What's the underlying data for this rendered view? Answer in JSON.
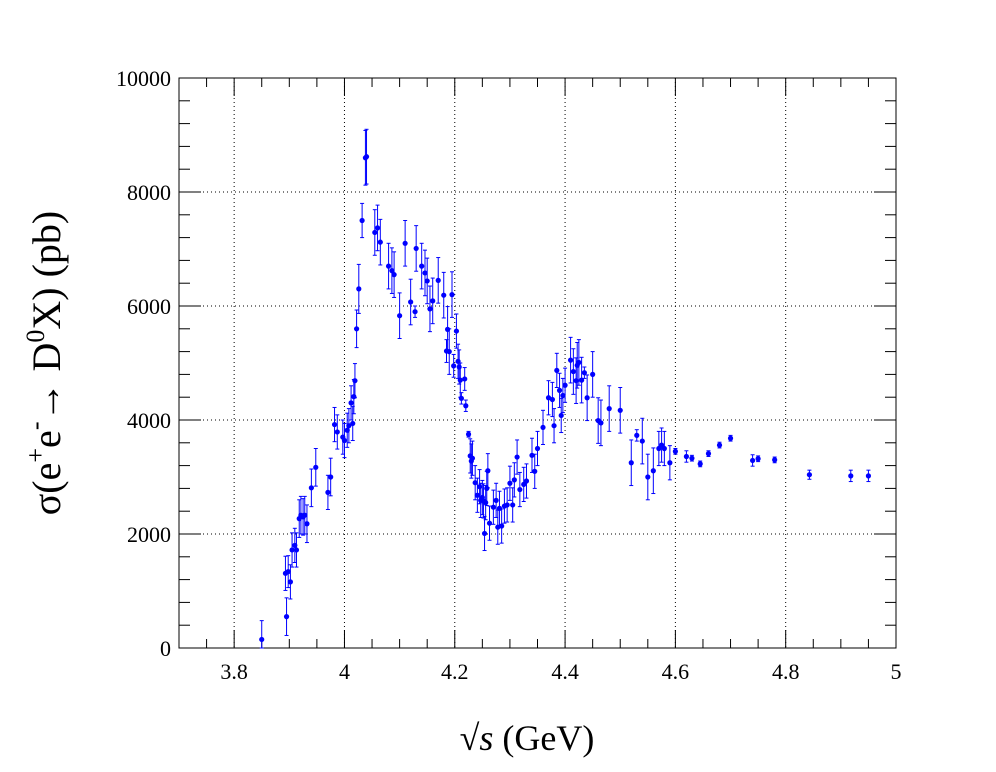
{
  "chart_data": {
    "type": "scatter",
    "xlabel_prefix": "√",
    "xlabel_var": "s",
    "xlabel_unit": " (GeV)",
    "ylabel_parts": [
      "σ(e",
      "+",
      "e",
      "-",
      "→ D",
      "0",
      "X) (pb)"
    ],
    "xlim": [
      3.7,
      5.0
    ],
    "ylim": [
      0,
      10000
    ],
    "xticks": [
      3.8,
      4.0,
      4.2,
      4.4,
      4.6,
      4.8,
      5.0
    ],
    "xtick_labels": [
      "3.8",
      "4",
      "4.2",
      "4.4",
      "4.6",
      "4.8",
      "5"
    ],
    "yticks": [
      0,
      2000,
      4000,
      6000,
      8000,
      10000
    ],
    "ytick_labels": [
      "0",
      "2000",
      "4000",
      "6000",
      "8000",
      "10000"
    ],
    "grid": true,
    "marker_color": "#0000ff",
    "points": [
      [
        3.85,
        150,
        330
      ],
      [
        3.893,
        1310,
        300
      ],
      [
        3.895,
        550,
        330
      ],
      [
        3.898,
        1340,
        280
      ],
      [
        3.902,
        1160,
        300
      ],
      [
        3.905,
        1720,
        300
      ],
      [
        3.91,
        1800,
        300
      ],
      [
        3.913,
        1720,
        300
      ],
      [
        3.918,
        2270,
        330
      ],
      [
        3.921,
        2330,
        330
      ],
      [
        3.925,
        2300,
        320
      ],
      [
        3.928,
        2330,
        330
      ],
      [
        3.932,
        2180,
        330
      ],
      [
        3.94,
        2810,
        330
      ],
      [
        3.948,
        3170,
        330
      ],
      [
        3.97,
        2730,
        300
      ],
      [
        3.975,
        3000,
        330
      ],
      [
        3.982,
        3920,
        300
      ],
      [
        3.987,
        3790,
        300
      ],
      [
        3.997,
        3700,
        300
      ],
      [
        4.0,
        3640,
        300
      ],
      [
        4.005,
        3820,
        300
      ],
      [
        4.008,
        3900,
        300
      ],
      [
        4.012,
        4300,
        300
      ],
      [
        4.015,
        3940,
        300
      ],
      [
        4.017,
        4410,
        300
      ],
      [
        4.019,
        4690,
        300
      ],
      [
        4.022,
        5600,
        330
      ],
      [
        4.026,
        6300,
        430
      ],
      [
        4.032,
        7500,
        300
      ],
      [
        4.038,
        8600,
        480
      ],
      [
        4.04,
        8620,
        480
      ],
      [
        4.055,
        7290,
        400
      ],
      [
        4.06,
        7370,
        400
      ],
      [
        4.065,
        7120,
        400
      ],
      [
        4.08,
        6700,
        400
      ],
      [
        4.086,
        6620,
        400
      ],
      [
        4.09,
        6550,
        400
      ],
      [
        4.1,
        5830,
        400
      ],
      [
        4.11,
        7100,
        400
      ],
      [
        4.12,
        6070,
        400
      ],
      [
        4.128,
        5900,
        100
      ],
      [
        4.13,
        7010,
        400
      ],
      [
        4.14,
        6700,
        400
      ],
      [
        4.146,
        6580,
        400
      ],
      [
        4.15,
        6440,
        400
      ],
      [
        4.155,
        5950,
        400
      ],
      [
        4.16,
        6090,
        400
      ],
      [
        4.17,
        6450,
        400
      ],
      [
        4.18,
        6190,
        400
      ],
      [
        4.185,
        5210,
        200
      ],
      [
        4.187,
        5590,
        400
      ],
      [
        4.19,
        5200,
        400
      ],
      [
        4.195,
        6200,
        400
      ],
      [
        4.198,
        4950,
        200
      ],
      [
        4.203,
        5560,
        300
      ],
      [
        4.206,
        5030,
        300
      ],
      [
        4.208,
        4930,
        300
      ],
      [
        4.21,
        4700,
        300
      ],
      [
        4.212,
        4380,
        100
      ],
      [
        4.218,
        4720,
        200
      ],
      [
        4.22,
        4250,
        100
      ],
      [
        4.225,
        3750,
        50
      ],
      [
        4.228,
        3370,
        300
      ],
      [
        4.23,
        3280,
        300
      ],
      [
        4.232,
        3330,
        300
      ],
      [
        4.237,
        2900,
        300
      ],
      [
        4.241,
        2680,
        300
      ],
      [
        4.245,
        2830,
        300
      ],
      [
        4.247,
        2590,
        300
      ],
      [
        4.25,
        2640,
        300
      ],
      [
        4.252,
        2580,
        300
      ],
      [
        4.254,
        2010,
        300
      ],
      [
        4.256,
        2550,
        300
      ],
      [
        4.258,
        2800,
        300
      ],
      [
        4.26,
        3110,
        300
      ],
      [
        4.263,
        2190,
        300
      ],
      [
        4.27,
        2470,
        300
      ],
      [
        4.275,
        2590,
        300
      ],
      [
        4.278,
        2120,
        300
      ],
      [
        4.281,
        2450,
        300
      ],
      [
        4.285,
        2140,
        300
      ],
      [
        4.29,
        2490,
        300
      ],
      [
        4.295,
        2510,
        300
      ],
      [
        4.3,
        2890,
        300
      ],
      [
        4.305,
        2510,
        300
      ],
      [
        4.308,
        2950,
        300
      ],
      [
        4.313,
        3350,
        300
      ],
      [
        4.318,
        2780,
        300
      ],
      [
        4.325,
        2870,
        300
      ],
      [
        4.33,
        2930,
        300
      ],
      [
        4.34,
        3380,
        300
      ],
      [
        4.345,
        3100,
        300
      ],
      [
        4.35,
        3500,
        300
      ],
      [
        4.36,
        3870,
        300
      ],
      [
        4.37,
        4390,
        300
      ],
      [
        4.377,
        4360,
        300
      ],
      [
        4.38,
        3900,
        300
      ],
      [
        4.385,
        4870,
        300
      ],
      [
        4.39,
        4520,
        300
      ],
      [
        4.393,
        4080,
        300
      ],
      [
        4.396,
        4430,
        300
      ],
      [
        4.4,
        4610,
        300
      ],
      [
        4.41,
        5050,
        400
      ],
      [
        4.415,
        4850,
        400
      ],
      [
        4.42,
        4690,
        400
      ],
      [
        4.422,
        4960,
        400
      ],
      [
        4.425,
        5010,
        400
      ],
      [
        4.43,
        4700,
        400
      ],
      [
        4.435,
        4830,
        100
      ],
      [
        4.44,
        4390,
        400
      ],
      [
        4.45,
        4800,
        400
      ],
      [
        4.46,
        3990,
        400
      ],
      [
        4.465,
        3950,
        400
      ],
      [
        4.48,
        4200,
        400
      ],
      [
        4.5,
        4170,
        400
      ],
      [
        4.52,
        3250,
        400
      ],
      [
        4.53,
        3730,
        100
      ],
      [
        4.54,
        3630,
        400
      ],
      [
        4.55,
        3000,
        400
      ],
      [
        4.56,
        3110,
        400
      ],
      [
        4.57,
        3500,
        300
      ],
      [
        4.575,
        3560,
        300
      ],
      [
        4.58,
        3500,
        300
      ],
      [
        4.59,
        3250,
        300
      ],
      [
        4.6,
        3450,
        50
      ],
      [
        4.62,
        3360,
        100
      ],
      [
        4.63,
        3330,
        50
      ],
      [
        4.645,
        3230,
        50
      ],
      [
        4.66,
        3410,
        50
      ],
      [
        4.68,
        3560,
        50
      ],
      [
        4.7,
        3680,
        50
      ],
      [
        4.74,
        3290,
        100
      ],
      [
        4.75,
        3320,
        50
      ],
      [
        4.78,
        3300,
        50
      ],
      [
        4.843,
        3040,
        80
      ],
      [
        4.918,
        3020,
        100
      ],
      [
        4.95,
        3020,
        100
      ]
    ]
  }
}
